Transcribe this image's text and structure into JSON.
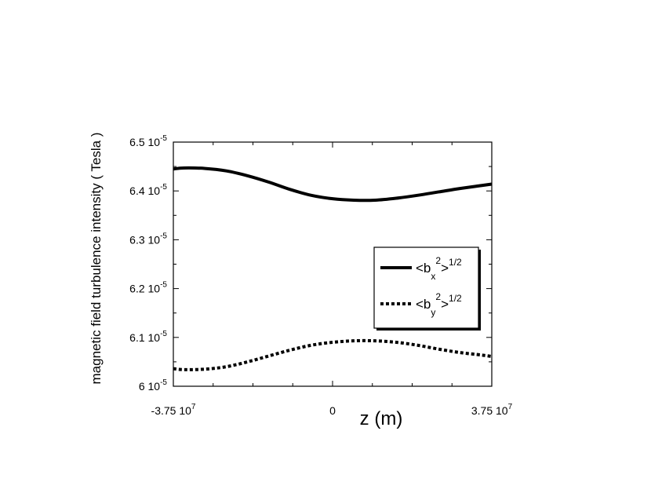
{
  "chart_data": {
    "type": "line",
    "ylabel": "magnetic field turbulence intensity ( Tesla )",
    "xlabel": "z (m)",
    "xlim": [
      -37500000.0,
      37500000.0
    ],
    "ylim": [
      6e-05,
      6.5e-05
    ],
    "x_ticks": [
      {
        "value": -37500000.0,
        "base": "-3.75 10",
        "exp": "7"
      },
      {
        "value": 0,
        "base": "0",
        "exp": ""
      },
      {
        "value": 37500000.0,
        "base": "3.75 10",
        "exp": "7"
      }
    ],
    "y_ticks": [
      {
        "value": 6e-05,
        "base": "6 10",
        "exp": "-5"
      },
      {
        "value": 6.1e-05,
        "base": "6.1 10",
        "exp": "-5"
      },
      {
        "value": 6.2e-05,
        "base": "6.2 10",
        "exp": "-5"
      },
      {
        "value": 6.3e-05,
        "base": "6.3 10",
        "exp": "-5"
      },
      {
        "value": 6.4e-05,
        "base": "6.4 10",
        "exp": "-5"
      },
      {
        "value": 6.5e-05,
        "base": "6.5 10",
        "exp": "-5"
      }
    ],
    "series": [
      {
        "name": "<b_x^2>^1/2",
        "style": "solid",
        "x": [
          -37500000.0,
          -35000000.0,
          -30000000.0,
          -25000000.0,
          -20000000.0,
          -15000000.0,
          -10000000.0,
          -5000000.0,
          0,
          5000000.0,
          10000000.0,
          15000000.0,
          20000000.0,
          25000000.0,
          30000000.0,
          35000000.0,
          37500000.0
        ],
        "values": [
          6.445e-05,
          6.447e-05,
          6.446e-05,
          6.441e-05,
          6.431e-05,
          6.418e-05,
          6.403e-05,
          6.391e-05,
          6.384e-05,
          6.381e-05,
          6.381e-05,
          6.385e-05,
          6.391e-05,
          6.398e-05,
          6.405e-05,
          6.411e-05,
          6.414e-05
        ]
      },
      {
        "name": "<b_y^2>^1/2",
        "style": "dotted",
        "x": [
          -37500000.0,
          -35000000.0,
          -30000000.0,
          -25000000.0,
          -20000000.0,
          -15000000.0,
          -10000000.0,
          -5000000.0,
          0,
          5000000.0,
          10000000.0,
          15000000.0,
          20000000.0,
          25000000.0,
          30000000.0,
          35000000.0,
          37500000.0
        ],
        "values": [
          6.036e-05,
          6.034e-05,
          6.035e-05,
          6.04e-05,
          6.05e-05,
          6.062e-05,
          6.074e-05,
          6.084e-05,
          6.09e-05,
          6.093e-05,
          6.093e-05,
          6.09e-05,
          6.084e-05,
          6.076e-05,
          6.069e-05,
          6.064e-05,
          6.061e-05
        ]
      }
    ],
    "legend": [
      {
        "base": "<b",
        "sub": "x",
        "sup": "2",
        "rest": ">",
        "sup2": "1/2"
      },
      {
        "base": "<b",
        "sub": "y",
        "sup": "2",
        "rest": ">",
        "sup2": "1/2"
      }
    ],
    "legend_position": "right-middle",
    "grid": false
  }
}
